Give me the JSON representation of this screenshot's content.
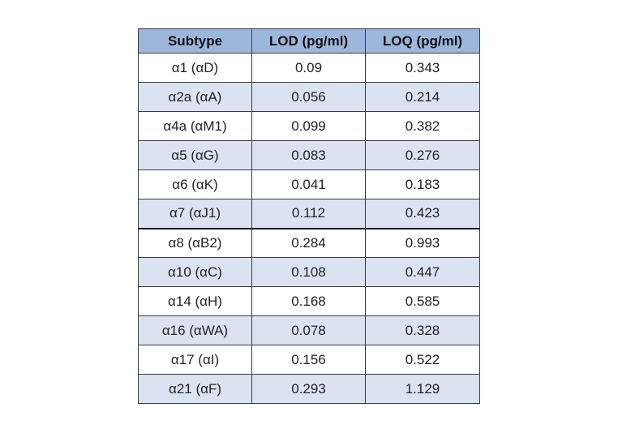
{
  "table": {
    "headers": [
      "Subtype",
      "LOD (pg/ml)",
      "LOQ (pg/ml)"
    ],
    "rows": [
      [
        "α1 (αD)",
        "0.09",
        "0.343"
      ],
      [
        "α2a (αA)",
        "0.056",
        "0.214"
      ],
      [
        "α4a (αM1)",
        "0.099",
        "0.382"
      ],
      [
        "α5 (αG)",
        "0.083",
        "0.276"
      ],
      [
        "α6 (αK)",
        "0.041",
        "0.183"
      ],
      [
        "α7 (αJ1)",
        "0.112",
        "0.423"
      ],
      [
        "α8 (αB2)",
        "0.284",
        "0.993"
      ],
      [
        "α10 (αC)",
        "0.108",
        "0.447"
      ],
      [
        "α14 (αH)",
        "0.168",
        "0.585"
      ],
      [
        "α16 (αWA)",
        "0.078",
        "0.328"
      ],
      [
        "α17 (αI)",
        "0.156",
        "0.522"
      ],
      [
        "α21 (αF)",
        "0.293",
        "1.129"
      ]
    ]
  },
  "colors": {
    "header_bg": "#9db6dc",
    "row_alt_bg": "#dbe3f2",
    "row_bg": "#ffffff",
    "border": "#3a3a3a"
  }
}
